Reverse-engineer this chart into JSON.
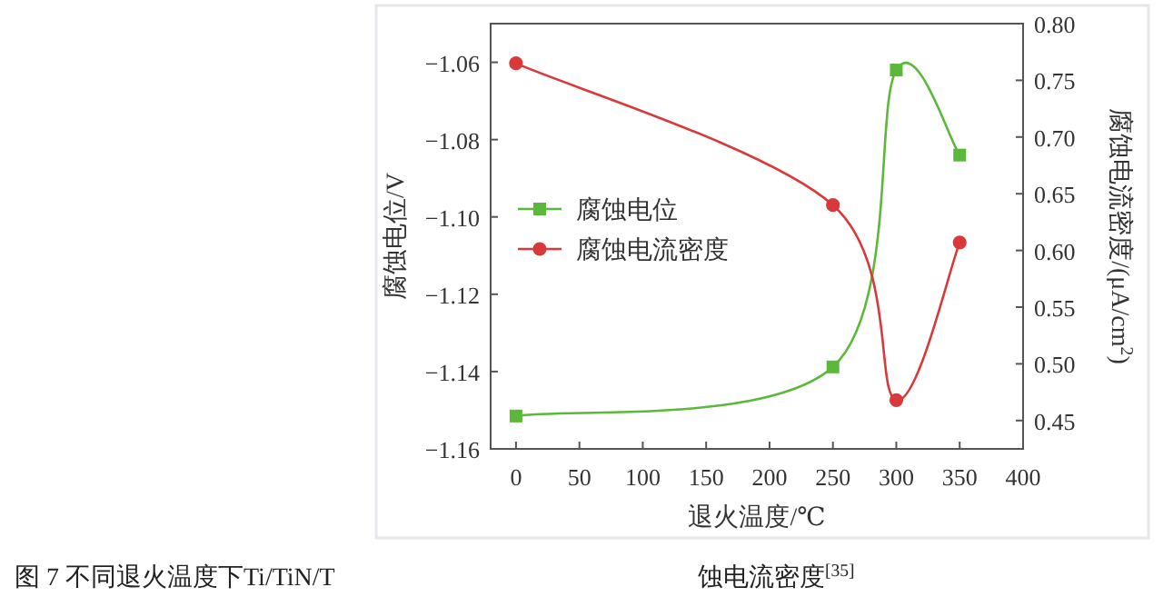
{
  "chart_data": {
    "type": "line",
    "title": "图 7 不同退火温度下Ti/TiN/T",
    "xlabel": "退火温度/℃",
    "ylabel": "腐蚀电位/V",
    "y2label": "腐蚀电流密度/(μA/cm$^{2}$)",
    "annotations": [
      "蚀电流密度$^{[35]}$"
    ],
    "x": [
      0,
      250,
      300,
      350
    ],
    "xlim": [
      -20,
      400
    ],
    "xticks": [
      0,
      50,
      100,
      150,
      200,
      250,
      300,
      350,
      400
    ],
    "ylim": [
      -1.16,
      -1.05
    ],
    "yticks": [
      {
        "value": -1.16,
        "label": "−1.16"
      },
      {
        "value": -1.14,
        "label": "−1.14"
      },
      {
        "value": -1.12,
        "label": "−1.12"
      },
      {
        "value": -1.1,
        "label": "−1.10"
      },
      {
        "value": -1.08,
        "label": "−1.08"
      },
      {
        "value": -1.06,
        "label": "−1.06"
      }
    ],
    "y2lim": [
      0.425,
      0.8
    ],
    "y2ticks": [
      {
        "value": 0.45,
        "label": "0.45"
      },
      {
        "value": 0.5,
        "label": "0.50"
      },
      {
        "value": 0.55,
        "label": "0.55"
      },
      {
        "value": 0.6,
        "label": "0.60"
      },
      {
        "value": 0.65,
        "label": "0.65"
      },
      {
        "value": 0.7,
        "label": "0.70"
      },
      {
        "value": 0.75,
        "label": "0.75"
      },
      {
        "value": 0.8,
        "label": "0.80"
      }
    ],
    "series": [
      {
        "name": "腐蚀电位",
        "color": "#5cb83a",
        "marker": "square",
        "values": [
          -1.1515,
          -1.1388,
          -1.062,
          -1.084
        ]
      },
      {
        "name": "腐蚀电流密度",
        "color": "#d9393a",
        "marker": "circle",
        "axis": "y2",
        "values": [
          0.765,
          0.64,
          0.468,
          0.607
        ]
      }
    ],
    "legend": "left",
    "grid": false
  }
}
